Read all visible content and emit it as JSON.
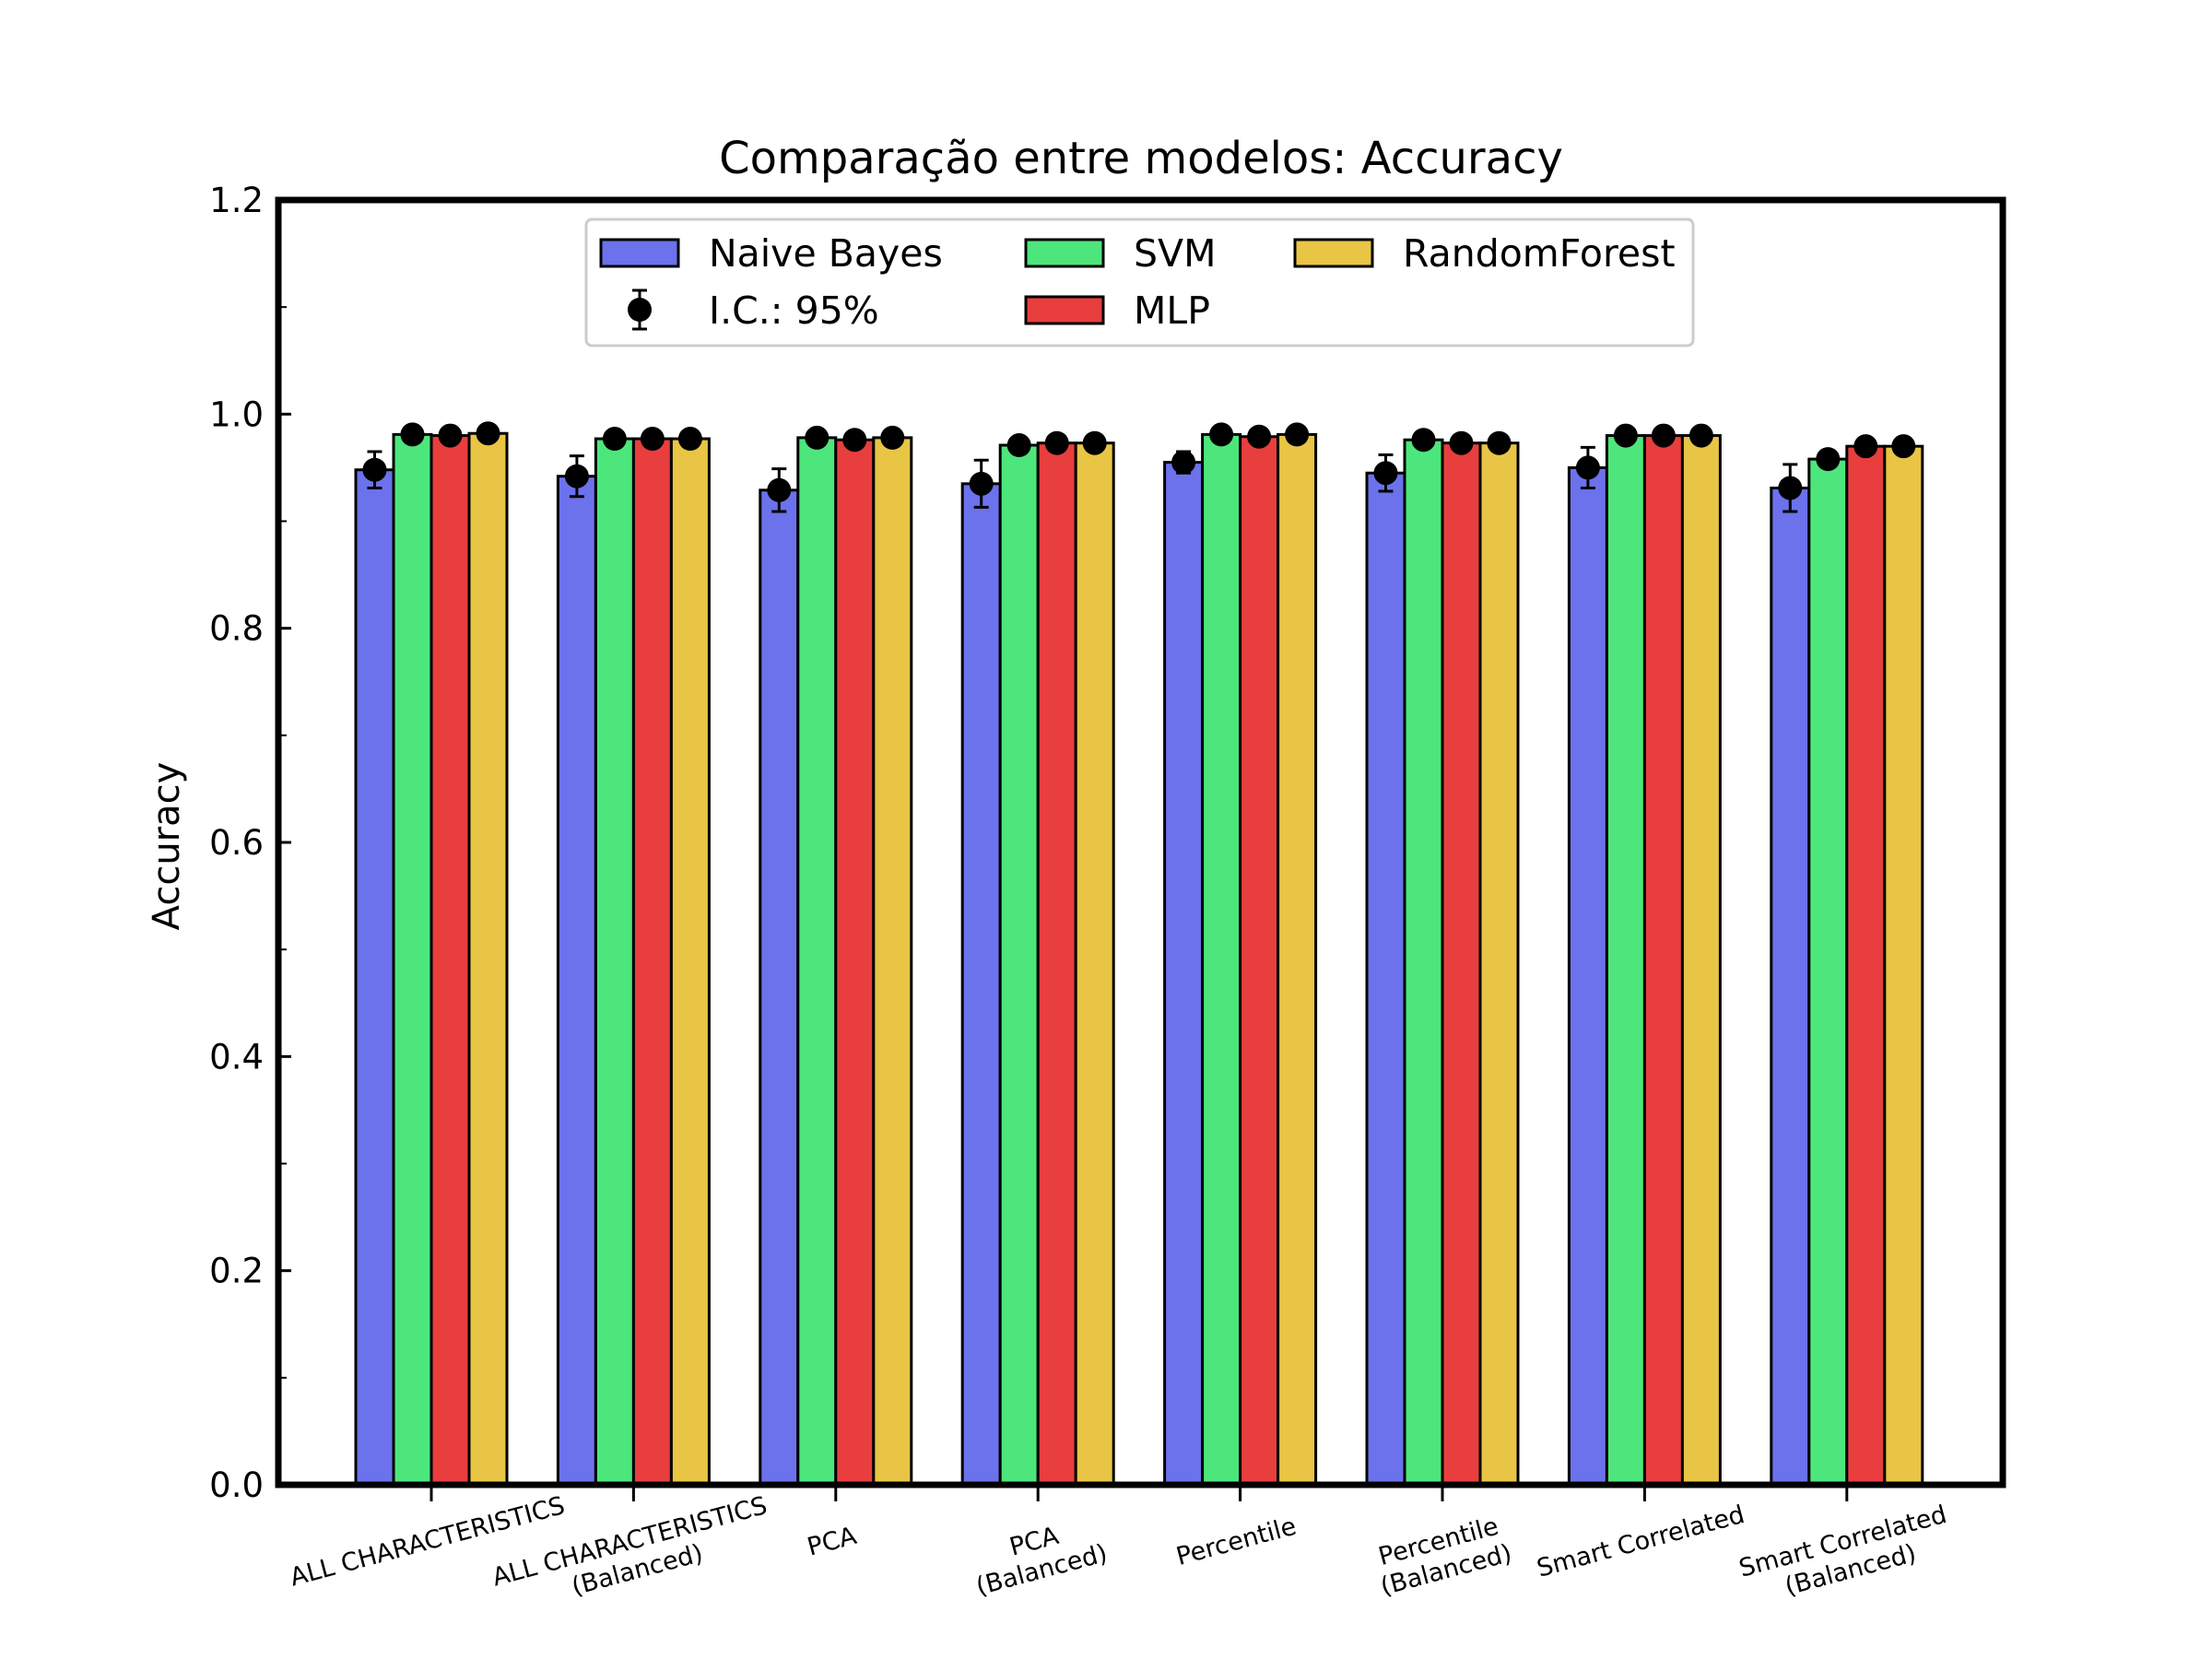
{
  "chart_data": {
    "type": "bar",
    "title": "Comparação entre modelos: Accuracy",
    "xlabel": "",
    "ylabel": "Accuracy",
    "ylim": [
      0,
      1.2
    ],
    "yticks": [
      "0.0",
      "0.2",
      "0.4",
      "0.6",
      "0.8",
      "1.0",
      "1.2"
    ],
    "categories": [
      [
        "ALL CHARACTERISTICS"
      ],
      [
        "ALL CHARACTERISTICS",
        "(Balanced)"
      ],
      [
        "PCA"
      ],
      [
        "PCA",
        "(Balanced)"
      ],
      [
        "Percentile"
      ],
      [
        "Percentile",
        "(Balanced)"
      ],
      [
        "Smart Correlated"
      ],
      [
        "Smart Correlated",
        "(Balanced)"
      ]
    ],
    "series": [
      {
        "name": "Naive Bayes",
        "color": "#6b72eb",
        "values": [
          0.948,
          0.942,
          0.929,
          0.935,
          0.955,
          0.945,
          0.95,
          0.931
        ],
        "err": [
          0.017,
          0.019,
          0.02,
          0.022,
          0.01,
          0.017,
          0.019,
          0.022
        ]
      },
      {
        "name": "SVM",
        "color": "#4de67c",
        "values": [
          0.981,
          0.977,
          0.978,
          0.971,
          0.981,
          0.976,
          0.98,
          0.958
        ],
        "err": [
          0.003,
          0.003,
          0.003,
          0.003,
          0.003,
          0.003,
          0.003,
          0.003
        ]
      },
      {
        "name": "MLP",
        "color": "#e83e3e",
        "values": [
          0.98,
          0.977,
          0.976,
          0.973,
          0.979,
          0.973,
          0.98,
          0.97
        ],
        "err": [
          0.003,
          0.003,
          0.003,
          0.003,
          0.003,
          0.003,
          0.003,
          0.003
        ]
      },
      {
        "name": "RandomForest",
        "color": "#e8c545",
        "values": [
          0.982,
          0.977,
          0.978,
          0.973,
          0.981,
          0.973,
          0.98,
          0.97
        ],
        "err": [
          0.003,
          0.003,
          0.003,
          0.003,
          0.003,
          0.003,
          0.003,
          0.003
        ]
      }
    ],
    "errorbar_legend": "I.C.: 95%",
    "legend": {
      "position": "upper center",
      "columns": 3
    },
    "grid": false
  }
}
